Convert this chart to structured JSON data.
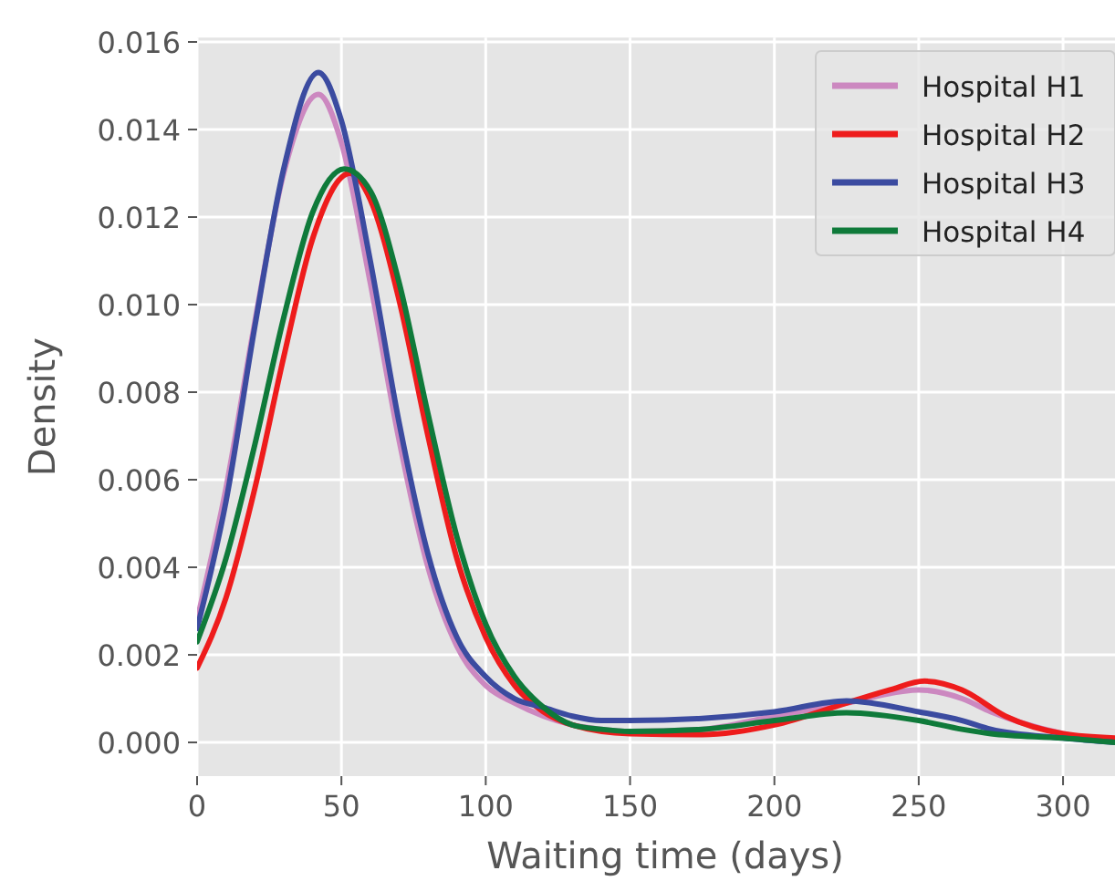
{
  "chart_data": {
    "type": "line",
    "xlabel": "Waiting time (days)",
    "ylabel": "Density",
    "xlim": [
      0,
      318
    ],
    "ylim": [
      -0.00077,
      0.0161
    ],
    "xticks": [
      0,
      50,
      100,
      150,
      200,
      250,
      300
    ],
    "yticks": [
      {
        "value": 0,
        "label": "0.000"
      },
      {
        "value": 0.002,
        "label": "0.002"
      },
      {
        "value": 0.004,
        "label": "0.004"
      },
      {
        "value": 0.006,
        "label": "0.006"
      },
      {
        "value": 0.008,
        "label": "0.008"
      },
      {
        "value": 0.01,
        "label": "0.010"
      },
      {
        "value": 0.012,
        "label": "0.012"
      },
      {
        "value": 0.014,
        "label": "0.014"
      },
      {
        "value": 0.016,
        "label": "0.016"
      }
    ],
    "grid": true,
    "legend": "top right",
    "marker": "none",
    "line_style": "solid",
    "x": [
      0,
      10,
      20,
      30,
      42,
      50,
      60,
      70,
      80,
      90,
      100,
      110,
      120,
      130,
      140,
      150,
      175,
      200,
      225,
      250,
      265,
      275,
      300,
      318
    ],
    "series": [
      {
        "name": "Hospital H1",
        "color": "#cc88c0",
        "values": [
          0.0028,
          0.0058,
          0.0096,
          0.013,
          0.0148,
          0.0137,
          0.0105,
          0.0069,
          0.004,
          0.0022,
          0.0013,
          0.0009,
          0.0006,
          0.0004,
          0.0003,
          0.00025,
          0.0003,
          0.0006,
          0.0009,
          0.0012,
          0.001,
          0.0007,
          0.0002,
          0
        ]
      },
      {
        "name": "Hospital H2",
        "color": "#ee1c1c",
        "x": [
          0,
          10,
          20,
          30,
          40,
          53,
          60,
          70,
          80,
          90,
          100,
          110,
          120,
          130,
          150,
          175,
          200,
          225,
          240,
          252,
          265,
          280,
          300,
          318
        ],
        "values": [
          0.0017,
          0.0033,
          0.0058,
          0.0088,
          0.0115,
          0.013,
          0.0124,
          0.0101,
          0.007,
          0.0042,
          0.0024,
          0.0013,
          0.0007,
          0.0004,
          0.0002,
          0.00018,
          0.0004,
          0.0009,
          0.0012,
          0.0014,
          0.0012,
          0.0006,
          0.0002,
          0.0001
        ]
      },
      {
        "name": "Hospital H3",
        "color": "#3b4ba0",
        "values": [
          0.0026,
          0.0055,
          0.0095,
          0.0131,
          0.0153,
          0.0142,
          0.011,
          0.0073,
          0.0043,
          0.0024,
          0.0015,
          0.001,
          0.0008,
          0.0006,
          0.0005,
          0.0005,
          0.00055,
          0.0007,
          0.00095,
          0.0007,
          0.0005,
          0.0003,
          0.0001,
          0
        ]
      },
      {
        "name": "Hospital H4",
        "color": "#0f7a3a",
        "x": [
          0,
          10,
          20,
          30,
          40,
          51,
          60,
          70,
          80,
          90,
          100,
          110,
          120,
          130,
          140,
          150,
          175,
          200,
          225,
          250,
          265,
          275,
          300,
          318
        ],
        "values": [
          0.0023,
          0.0042,
          0.0068,
          0.0097,
          0.0121,
          0.0131,
          0.0126,
          0.0105,
          0.0075,
          0.0047,
          0.0027,
          0.0015,
          0.0008,
          0.0004,
          0.0003,
          0.00025,
          0.0003,
          0.0005,
          0.00068,
          0.0005,
          0.0003,
          0.0002,
          0.0001,
          0
        ]
      }
    ]
  }
}
